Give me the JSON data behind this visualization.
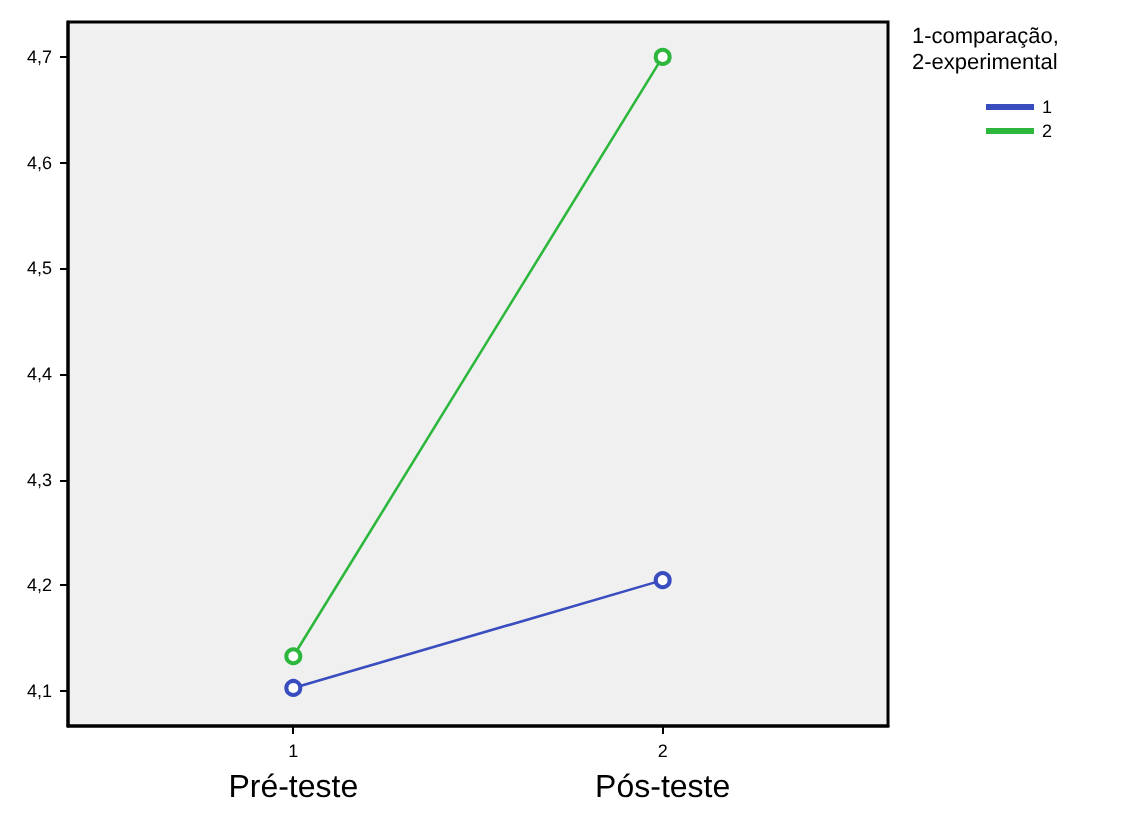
{
  "chart_data": {
    "type": "line",
    "x": [
      1,
      2
    ],
    "series": [
      {
        "name": "1",
        "color": "#3a4dbf",
        "values": [
          4.103,
          4.205
        ]
      },
      {
        "name": "2",
        "color": "#2db83d",
        "values": [
          4.133,
          4.7
        ]
      }
    ],
    "xlim": [
      0.39,
      2.61
    ],
    "xticks": [
      1,
      2
    ],
    "ylim": [
      4.067,
      4.733
    ],
    "yticks": [
      {
        "value": 4.1,
        "label": "4,1"
      },
      {
        "value": 4.2,
        "label": "4,2"
      },
      {
        "value": 4.3,
        "label": "4,3"
      },
      {
        "value": 4.4,
        "label": "4,4"
      },
      {
        "value": 4.5,
        "label": "4,5"
      },
      {
        "value": 4.6,
        "label": "4,6"
      },
      {
        "value": 4.7,
        "label": "4,7"
      }
    ],
    "legend_title": "1-comparação, 2-experimental",
    "legend": "top right",
    "marker": "circle",
    "grid": false,
    "annotations": [
      "Pré-teste",
      "Pós-teste"
    ]
  }
}
